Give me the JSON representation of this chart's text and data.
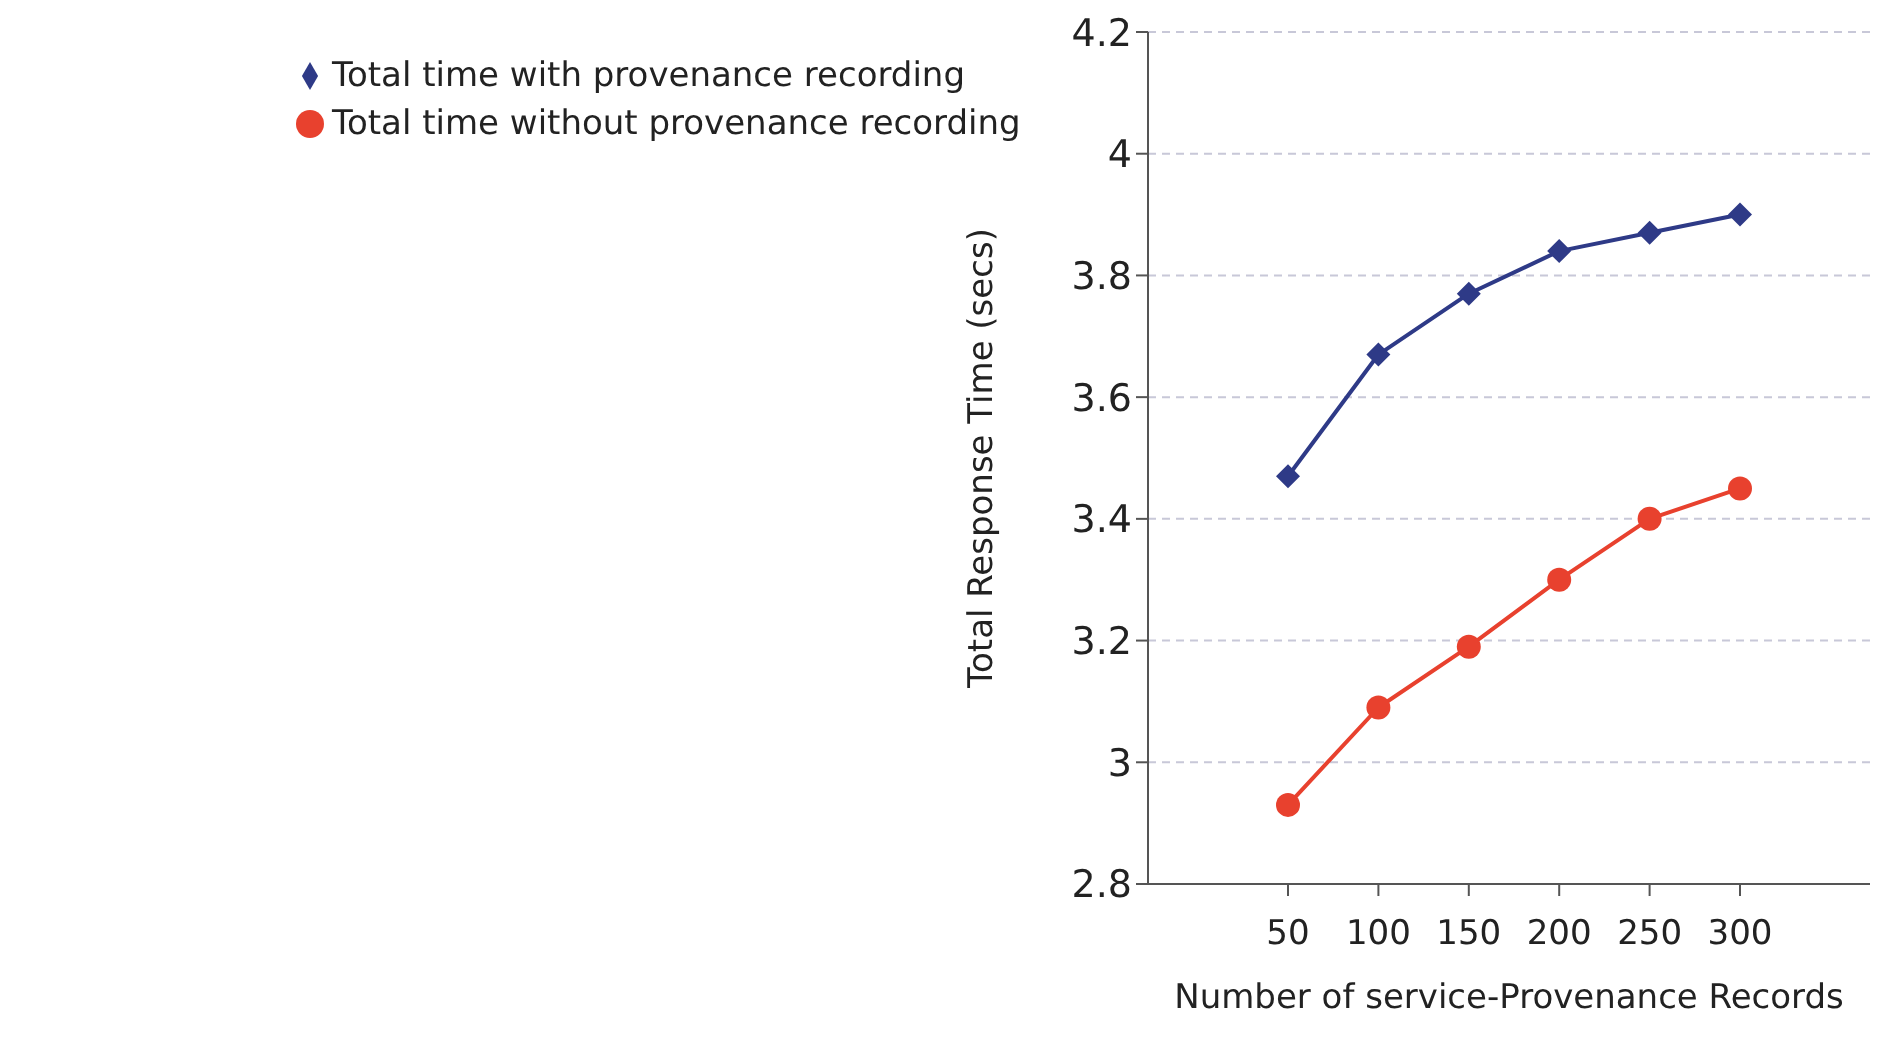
{
  "chart_data": {
    "type": "line",
    "xlabel": "Number of service-Provenance Records",
    "ylabel": "Total Response Time (secs)",
    "categories": [
      "50",
      "100",
      "150",
      "200",
      "250",
      "300"
    ],
    "series": [
      {
        "name": "Total time with provenance recording",
        "color": "#2e3a87",
        "marker": "diamond",
        "values": [
          3.47,
          3.67,
          3.77,
          3.84,
          3.87,
          3.9
        ]
      },
      {
        "name": "Total time without provenance recording",
        "color": "#e8412e",
        "marker": "circle",
        "values": [
          2.93,
          3.09,
          3.19,
          3.3,
          3.4,
          3.45
        ]
      }
    ],
    "ylim": [
      2.8,
      4.2
    ],
    "yticks": [
      2.8,
      3,
      3.2,
      3.4,
      3.6,
      3.8,
      4,
      4.2
    ],
    "grid": "y",
    "legend": "top left"
  }
}
